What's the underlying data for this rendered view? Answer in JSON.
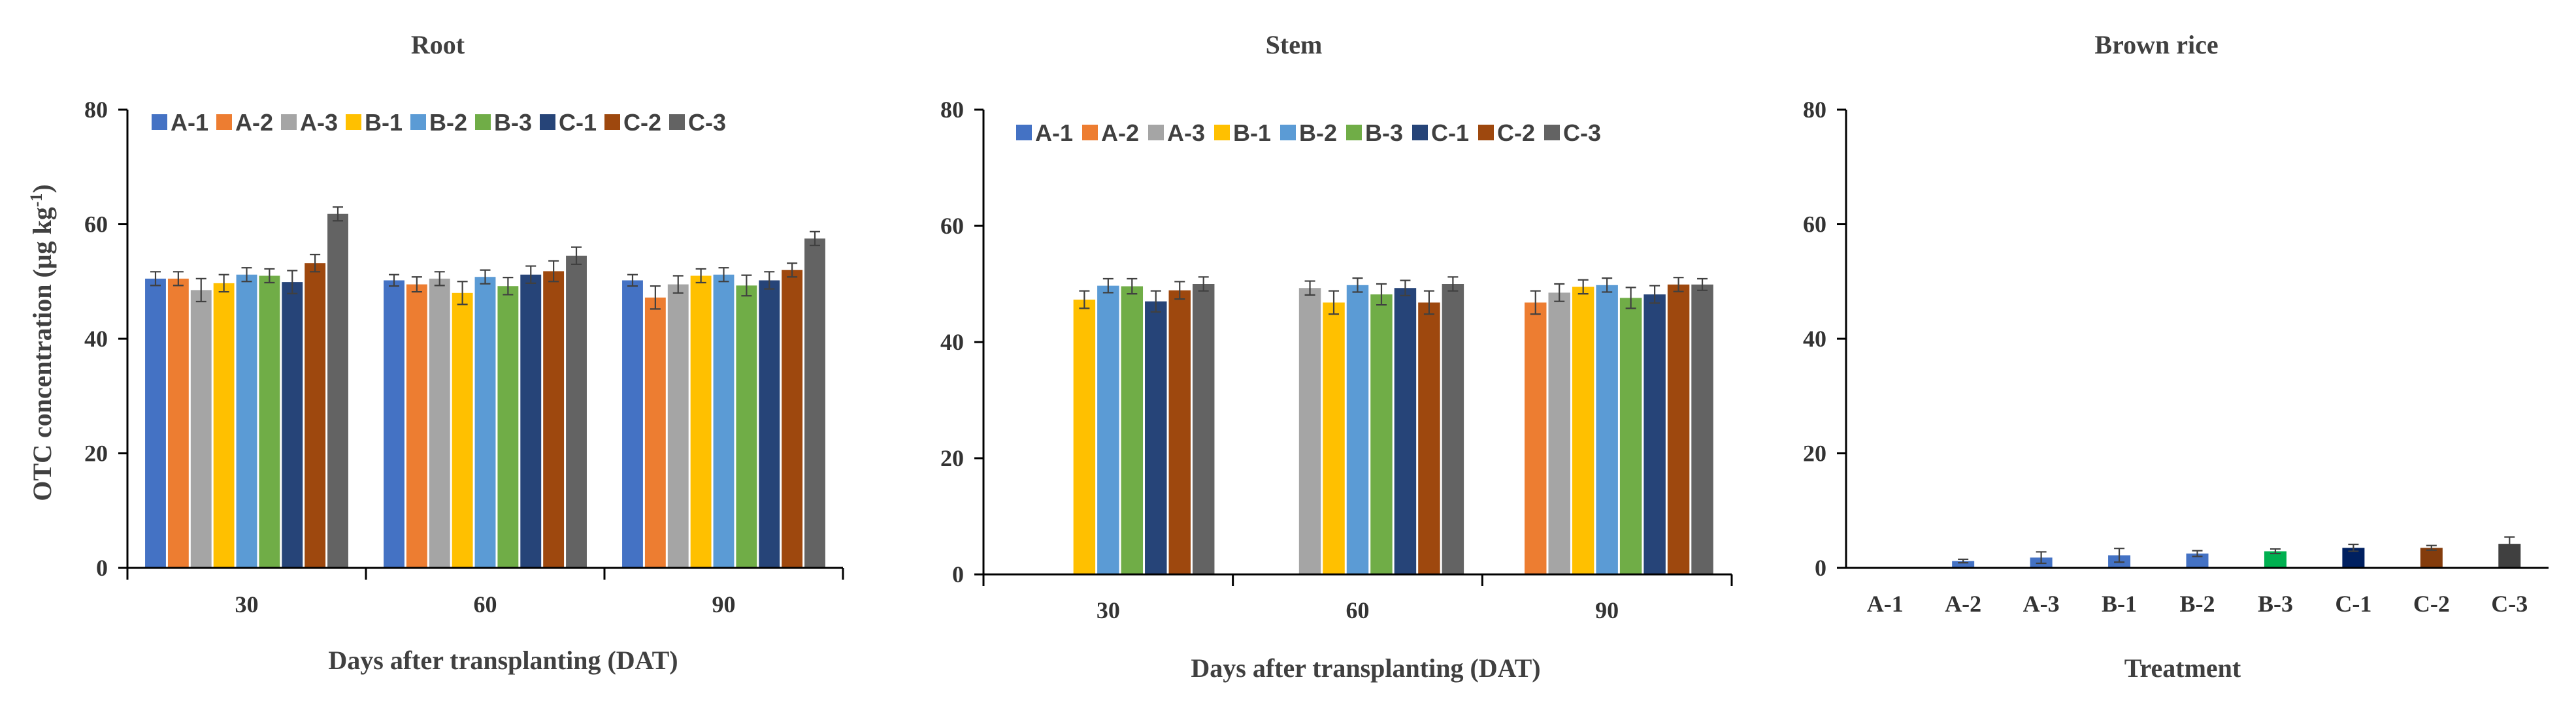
{
  "series_colors": {
    "A-1": "#4472C4",
    "A-2": "#ED7D31",
    "A-3": "#A5A5A5",
    "B-1": "#FFC000",
    "B-2": "#5B9BD5",
    "B-3": "#70AD47",
    "C-1": "#264478",
    "C-2": "#9E480E",
    "C-3": "#636363"
  },
  "chart_data": [
    {
      "type": "bar",
      "title": "Root",
      "xlabel": "Days after transplanting (DAT)",
      "ylabel": "OTC concentration (μg kg⁻¹)",
      "ylabel_main": "OTC  concentration (μg kg",
      "ylabel_sup": "-1",
      "ylabel_close": ")",
      "ylim": [
        0,
        80
      ],
      "yticks": [
        "0",
        "20",
        "40",
        "60",
        "80"
      ],
      "legend": "top",
      "categories": [
        "30",
        "60",
        "90"
      ],
      "series": [
        {
          "name": "A-1",
          "values": [
            50.5,
            50.2,
            50.2
          ],
          "errors": [
            1.2,
            1.0,
            1.0
          ]
        },
        {
          "name": "A-2",
          "values": [
            50.5,
            49.5,
            47.2
          ],
          "errors": [
            1.2,
            1.3,
            2.0
          ]
        },
        {
          "name": "A-3",
          "values": [
            48.5,
            50.5,
            49.5
          ],
          "errors": [
            2.0,
            1.2,
            1.5
          ]
        },
        {
          "name": "B-1",
          "values": [
            49.7,
            48.0,
            51.0
          ],
          "errors": [
            1.5,
            2.0,
            1.2
          ]
        },
        {
          "name": "B-2",
          "values": [
            51.2,
            50.8,
            51.2
          ],
          "errors": [
            1.2,
            1.2,
            1.2
          ]
        },
        {
          "name": "B-3",
          "values": [
            51.0,
            49.2,
            49.3
          ],
          "errors": [
            1.2,
            1.5,
            1.8
          ]
        },
        {
          "name": "C-1",
          "values": [
            49.9,
            51.2,
            50.2
          ],
          "errors": [
            2.0,
            1.5,
            1.5
          ]
        },
        {
          "name": "C-2",
          "values": [
            53.2,
            51.8,
            52.0
          ],
          "errors": [
            1.5,
            1.8,
            1.2
          ]
        },
        {
          "name": "C-3",
          "values": [
            61.8,
            54.5,
            57.5
          ],
          "errors": [
            1.2,
            1.5,
            1.2
          ]
        }
      ]
    },
    {
      "type": "bar",
      "title": "Stem",
      "xlabel": "Days after transplanting (DAT)",
      "ylim": [
        0,
        80
      ],
      "yticks": [
        "0",
        "20",
        "40",
        "60",
        "80"
      ],
      "legend": "top",
      "categories": [
        "30",
        "60",
        "90"
      ],
      "series": [
        {
          "name": "A-1",
          "values": [
            0,
            0,
            0
          ],
          "errors": [
            0,
            0,
            0
          ]
        },
        {
          "name": "A-2",
          "values": [
            0,
            0,
            46.8
          ],
          "errors": [
            0,
            0,
            2.0
          ]
        },
        {
          "name": "A-3",
          "values": [
            0,
            49.3,
            48.5
          ],
          "errors": [
            0,
            1.2,
            1.5
          ]
        },
        {
          "name": "B-1",
          "values": [
            47.3,
            46.8,
            49.5
          ],
          "errors": [
            1.5,
            2.0,
            1.2
          ]
        },
        {
          "name": "B-2",
          "values": [
            49.7,
            49.8,
            49.8
          ],
          "errors": [
            1.2,
            1.2,
            1.2
          ]
        },
        {
          "name": "B-3",
          "values": [
            49.6,
            48.2,
            47.6
          ],
          "errors": [
            1.3,
            1.8,
            1.8
          ]
        },
        {
          "name": "C-1",
          "values": [
            47.0,
            49.3,
            48.2
          ],
          "errors": [
            1.8,
            1.3,
            1.5
          ]
        },
        {
          "name": "C-2",
          "values": [
            48.9,
            46.8,
            49.9
          ],
          "errors": [
            1.5,
            2.0,
            1.2
          ]
        },
        {
          "name": "C-3",
          "values": [
            50.0,
            50.0,
            49.9
          ],
          "errors": [
            1.2,
            1.2,
            1.0
          ]
        }
      ]
    },
    {
      "type": "bar",
      "title": "Brown rice",
      "xlabel": "Treatment",
      "ylim": [
        0,
        80
      ],
      "yticks": [
        "0",
        "20",
        "40",
        "60",
        "80"
      ],
      "categories": [
        "A-1",
        "A-2",
        "A-3",
        "B-1",
        "B-2",
        "B-3",
        "C-1",
        "C-2",
        "C-3"
      ],
      "values": [
        0,
        1.2,
        1.8,
        2.2,
        2.5,
        2.9,
        3.5,
        3.5,
        4.2
      ],
      "errors": [
        0,
        0.3,
        1.0,
        1.2,
        0.5,
        0.4,
        0.6,
        0.4,
        1.2
      ],
      "colors": [
        "#4472C4",
        "#4472C4",
        "#4472C4",
        "#4472C4",
        "#4472C4",
        "#00B050",
        "#002060",
        "#843C0C",
        "#404040"
      ]
    }
  ]
}
